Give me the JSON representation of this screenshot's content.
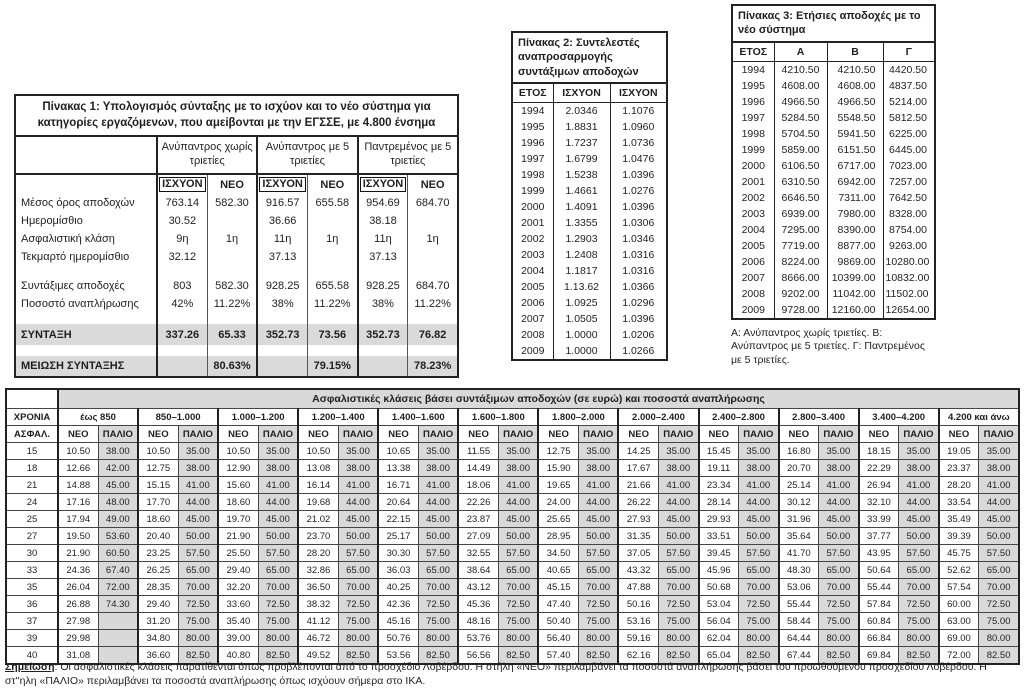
{
  "table1": {
    "title": "Πίνακας 1: Υπολογισμός σύνταξης με το ισχύον και το νέο σύστημα για κατηγορίες εργαζόμενων, που αμείβονται με την ΕΓΣΣΕ, με 4.800 ένσημα",
    "groups": [
      "Ανύπαντρος χωρίς τριετίες",
      "Ανύπαντρος με 5 τριετίες",
      "Παντρεμένος με 5 τριετίες"
    ],
    "subheaders": [
      {
        "label": "ΙΣΧΥΟΝ",
        "boxed": true
      },
      {
        "label": "ΝΕΟ",
        "boxed": false
      },
      {
        "label": "ΙΣΧΥΟΝ",
        "boxed": true
      },
      {
        "label": "ΝΕΟ",
        "boxed": false
      },
      {
        "label": "ΙΣΧΥΟΝ",
        "boxed": true
      },
      {
        "label": "ΝΕΟ",
        "boxed": false
      }
    ],
    "rows": [
      {
        "label": "Μέσος όρος αποδοχών",
        "values": [
          "763.14",
          "582.30",
          "916.57",
          "655.58",
          "954.69",
          "684.70"
        ],
        "highlight": false,
        "spacer": false
      },
      {
        "label": "Ημερομίσθιο",
        "values": [
          "30.52",
          "",
          "36.66",
          "",
          "38.18",
          ""
        ],
        "highlight": false,
        "spacer": false
      },
      {
        "label": "Ασφαλιστική κλάση",
        "values": [
          "9η",
          "1η",
          "11η",
          "1η",
          "11η",
          "1η"
        ],
        "highlight": false,
        "spacer": false
      },
      {
        "label": "Τεκμαρτό ημερομίσθιο",
        "values": [
          "32.12",
          "",
          "37.13",
          "",
          "37.13",
          ""
        ],
        "highlight": false,
        "spacer": false
      },
      {
        "label": "",
        "values": [
          "",
          "",
          "",
          "",
          "",
          ""
        ],
        "highlight": false,
        "spacer": true
      },
      {
        "label": "Συντάξιμες αποδοχές",
        "values": [
          "803",
          "582.30",
          "928.25",
          "655.58",
          "928.25",
          "684.70"
        ],
        "highlight": false,
        "spacer": false
      },
      {
        "label": "Ποσοστό αναπλήρωσης",
        "values": [
          "42%",
          "11.22%",
          "38%",
          "11.22%",
          "38%",
          "11.22%"
        ],
        "highlight": false,
        "spacer": false
      },
      {
        "label": "",
        "values": [
          "",
          "",
          "",
          "",
          "",
          ""
        ],
        "highlight": false,
        "spacer": true
      },
      {
        "label": "ΣΥΝΤΑΞΗ",
        "values": [
          "337.26",
          "65.33",
          "352.73",
          "73.56",
          "352.73",
          "76.82"
        ],
        "highlight": true,
        "spacer": false
      },
      {
        "label": "",
        "values": [
          "",
          "",
          "",
          "",
          "",
          ""
        ],
        "highlight": false,
        "spacer": true
      },
      {
        "label": "ΜΕΙΩΣΗ ΣΥΝΤΑΞΗΣ",
        "values": [
          "",
          "80.63%",
          "",
          "79.15%",
          "",
          "78.23%"
        ],
        "highlight": true,
        "spacer": false
      }
    ]
  },
  "table2": {
    "title": "Πίνακας 2: Συντελεστές αναπροσαρμογής συντάξιμων αποδοχών",
    "headers": [
      "ΕΤΟΣ",
      "ΙΣΧΥΟΝ",
      "ΙΣΧΥΟΝ"
    ],
    "rows": [
      [
        "1994",
        "2.0346",
        "1.1076"
      ],
      [
        "1995",
        "1.8831",
        "1.0960"
      ],
      [
        "1996",
        "1.7237",
        "1.0736"
      ],
      [
        "1997",
        "1.6799",
        "1.0476"
      ],
      [
        "1998",
        "1.5238",
        "1.0396"
      ],
      [
        "1999",
        "1.4661",
        "1.0276"
      ],
      [
        "2000",
        "1.4091",
        "1.0396"
      ],
      [
        "2001",
        "1.3355",
        "1.0306"
      ],
      [
        "2002",
        "1.2903",
        "1.0346"
      ],
      [
        "2003",
        "1.2408",
        "1.0316"
      ],
      [
        "2004",
        "1.1817",
        "1.0316"
      ],
      [
        "2005",
        "1.13.62",
        "1.0366"
      ],
      [
        "2006",
        "1.0925",
        "1.0296"
      ],
      [
        "2007",
        "1.0505",
        "1.0396"
      ],
      [
        "2008",
        "1.0000",
        "1.0206"
      ],
      [
        "2009",
        "1.0000",
        "1.0266"
      ]
    ]
  },
  "table3": {
    "title": "Πίνακας 3: Ετήσιες αποδοχές με το νέο σύστημα",
    "headers": [
      "ΕΤΟΣ",
      "Α",
      "Β",
      "Γ"
    ],
    "rows": [
      [
        "1994",
        "4210.50",
        "4210.50",
        "4420.50"
      ],
      [
        "1995",
        "4608.00",
        "4608.00",
        "4837.50"
      ],
      [
        "1996",
        "4966.50",
        "4966.50",
        "5214.00"
      ],
      [
        "1997",
        "5284.50",
        "5548.50",
        "5812.50"
      ],
      [
        "1998",
        "5704.50",
        "5941.50",
        "6225.00"
      ],
      [
        "1999",
        "5859.00",
        "6151.50",
        "6445.00"
      ],
      [
        "2000",
        "6106.50",
        "6717.00",
        "7023.00"
      ],
      [
        "2001",
        "6310.50",
        "6942.00",
        "7257.00"
      ],
      [
        "2002",
        "6646.50",
        "7311.00",
        "7642.50"
      ],
      [
        "2003",
        "6939.00",
        "7980.00",
        "8328.00"
      ],
      [
        "2004",
        "7295.00",
        "8390.00",
        "8754.00"
      ],
      [
        "2005",
        "7719.00",
        "8877.00",
        "9263.00"
      ],
      [
        "2006",
        "8224.00",
        "9869.00",
        "10280.00"
      ],
      [
        "2007",
        "8666.00",
        "10399.00",
        "10832.00"
      ],
      [
        "2008",
        "9202.00",
        "11042.00",
        "11502.00"
      ],
      [
        "2009",
        "9728.00",
        "12160.00",
        "12654.00"
      ]
    ],
    "footnote": "Α: Ανύπαντρος χωρίς τριετίες. Β: Ανύπαντρος με 5 τριετίες. Γ: Παντρεμένος με 5 τριετίες."
  },
  "bigtable": {
    "title": "Ασφαλιστικές κλάσεις βάσει συντάξιμων αποδοχών (σε ευρώ) και ποσοστά αναπλήρωσης",
    "col1_line1": "ΧΡΟΝΙΑ",
    "col1_line2": "ΑΣΦΑΛ.",
    "groups": [
      "έως 850",
      "850–1.000",
      "1.000–1.200",
      "1.200–1.400",
      "1.400–1.600",
      "1.600–1.800",
      "1.800–2.000",
      "2.000–2.400",
      "2.400–2.800",
      "2.800–3.400",
      "3.400–4.200",
      "4.200 και άνω"
    ],
    "sub_new": "ΝΕΟ",
    "sub_old": "ΠΑΛΙΟ",
    "rows": [
      {
        "years": "15",
        "cells": [
          "10.50",
          "38.00",
          "10.50",
          "35.00",
          "10.50",
          "35.00",
          "10.50",
          "35.00",
          "10.65",
          "35.00",
          "11.55",
          "35.00",
          "12.75",
          "35.00",
          "14.25",
          "35.00",
          "15.45",
          "35.00",
          "16.80",
          "35.00",
          "18.15",
          "35.00",
          "19.05",
          "35.00"
        ]
      },
      {
        "years": "18",
        "cells": [
          "12.66",
          "42.00",
          "12.75",
          "38.00",
          "12.90",
          "38.00",
          "13.08",
          "38.00",
          "13.38",
          "38.00",
          "14.49",
          "38.00",
          "15.90",
          "38.00",
          "17.67",
          "38.00",
          "19.11",
          "38.00",
          "20.70",
          "38.00",
          "22.29",
          "38.00",
          "23.37",
          "38.00"
        ]
      },
      {
        "years": "21",
        "cells": [
          "14.88",
          "45.00",
          "15.15",
          "41.00",
          "15.60",
          "41.00",
          "16.14",
          "41.00",
          "16.71",
          "41.00",
          "18.06",
          "41.00",
          "19.65",
          "41.00",
          "21.66",
          "41.00",
          "23.34",
          "41.00",
          "25.14",
          "41.00",
          "26.94",
          "41.00",
          "28.20",
          "41.00"
        ]
      },
      {
        "years": "24",
        "cells": [
          "17.16",
          "48.00",
          "17.70",
          "44.00",
          "18.60",
          "44.00",
          "19.68",
          "44.00",
          "20.64",
          "44.00",
          "22.26",
          "44.00",
          "24.00",
          "44.00",
          "26.22",
          "44.00",
          "28.14",
          "44.00",
          "30.12",
          "44.00",
          "32.10",
          "44.00",
          "33.54",
          "44.00"
        ]
      },
      {
        "years": "25",
        "cells": [
          "17.94",
          "49.00",
          "18.60",
          "45.00",
          "19.70",
          "45.00",
          "21.02",
          "45.00",
          "22.15",
          "45.00",
          "23.87",
          "45.00",
          "25.65",
          "45.00",
          "27.93",
          "45.00",
          "29.93",
          "45.00",
          "31.96",
          "45.00",
          "33.99",
          "45.00",
          "35.49",
          "45.00"
        ]
      },
      {
        "years": "27",
        "cells": [
          "19.50",
          "53.60",
          "20.40",
          "50.00",
          "21.90",
          "50.00",
          "23.70",
          "50.00",
          "25.17",
          "50.00",
          "27.09",
          "50.00",
          "28.95",
          "50.00",
          "31.35",
          "50.00",
          "33.51",
          "50.00",
          "35.64",
          "50.00",
          "37.77",
          "50.00",
          "39.39",
          "50.00"
        ]
      },
      {
        "years": "30",
        "cells": [
          "21.90",
          "60.50",
          "23.25",
          "57.50",
          "25.50",
          "57.50",
          "28.20",
          "57.50",
          "30.30",
          "57.50",
          "32.55",
          "57.50",
          "34.50",
          "57.50",
          "37.05",
          "57.50",
          "39.45",
          "57.50",
          "41.70",
          "57.50",
          "43.95",
          "57.50",
          "45.75",
          "57.50"
        ]
      },
      {
        "years": "33",
        "cells": [
          "24.36",
          "67.40",
          "26.25",
          "65.00",
          "29.40",
          "65.00",
          "32.86",
          "65.00",
          "36.03",
          "65.00",
          "38.64",
          "65.00",
          "40.65",
          "65.00",
          "43.32",
          "65.00",
          "45.96",
          "65.00",
          "48.30",
          "65.00",
          "50.64",
          "65.00",
          "52.62",
          "65.00"
        ]
      },
      {
        "years": "35",
        "cells": [
          "26.04",
          "72.00",
          "28.35",
          "70.00",
          "32.20",
          "70.00",
          "36.50",
          "70.00",
          "40.25",
          "70.00",
          "43.12",
          "70.00",
          "45.15",
          "70.00",
          "47.88",
          "70.00",
          "50.68",
          "70.00",
          "53.06",
          "70.00",
          "55.44",
          "70.00",
          "57.54",
          "70.00"
        ]
      },
      {
        "years": "36",
        "cells": [
          "26.88",
          "74.30",
          "29.40",
          "72.50",
          "33.60",
          "72.50",
          "38.32",
          "72.50",
          "42.36",
          "72.50",
          "45.36",
          "72.50",
          "47.40",
          "72.50",
          "50.16",
          "72.50",
          "53.04",
          "72.50",
          "55.44",
          "72.50",
          "57.84",
          "72.50",
          "60.00",
          "72.50"
        ]
      },
      {
        "years": "37",
        "cells": [
          "27.98",
          "",
          "31.20",
          "75.00",
          "35.40",
          "75.00",
          "41.12",
          "75.00",
          "45.16",
          "75.00",
          "48.16",
          "75.00",
          "50.40",
          "75.00",
          "53.16",
          "75.00",
          "56.04",
          "75.00",
          "58.44",
          "75.00",
          "60.84",
          "75.00",
          "63.00",
          "75.00"
        ]
      },
      {
        "years": "39",
        "cells": [
          "29.98",
          "",
          "34.80",
          "80.00",
          "39.00",
          "80.00",
          "46.72",
          "80.00",
          "50.76",
          "80.00",
          "53.76",
          "80.00",
          "56.40",
          "80.00",
          "59.16",
          "80.00",
          "62.04",
          "80.00",
          "64.44",
          "80.00",
          "66.84",
          "80.00",
          "69.00",
          "80.00"
        ]
      },
      {
        "years": "40",
        "cells": [
          "31.08",
          "",
          "36.60",
          "82.50",
          "40.80",
          "82.50",
          "49.52",
          "82.50",
          "53.56",
          "82.50",
          "56.56",
          "82.50",
          "57.40",
          "82.50",
          "62.16",
          "82.50",
          "65.04",
          "82.50",
          "67.44",
          "82.50",
          "69.84",
          "82.50",
          "72.00",
          "82.50"
        ]
      }
    ]
  },
  "note": {
    "prefix": "Σημείωση",
    "text": ": Οι ασφαλιστικές κλάσεις παρατίθενται όπως προβλέπονται από το προσχέδιο Λοβέρδου. Η στήλη «ΝΕΟ» περιλαμβάνει τα ποσοστά αναπλήρωσης βάσει του προωθούμενου προσχεδίου Λοβέρδου. Η στ''ηλη «ΠΑΛΙΟ» περιλαμβάνει τα ποσοστά αναπλήρωσης όπως ισχύουν σήμερα στο ΙΚΑ."
  },
  "colors": {
    "shade_gray": "#d9d9d9",
    "border_dark": "#222222",
    "text": "#1f1f1f"
  }
}
